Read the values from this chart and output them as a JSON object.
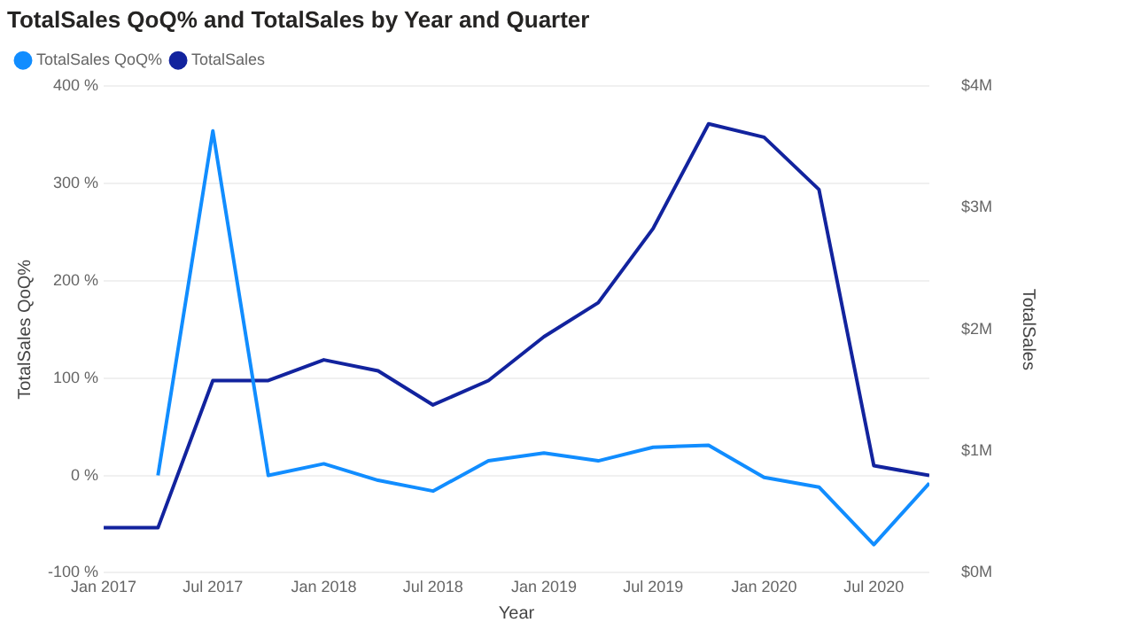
{
  "chart_data": {
    "type": "line",
    "title": "TotalSales QoQ% and TotalSales by Year and Quarter",
    "xlabel": "Year",
    "ylabel": "TotalSales QoQ%",
    "y2label": "TotalSales",
    "x": [
      "2017-01",
      "2017-04",
      "2017-07",
      "2017-10",
      "2018-01",
      "2018-04",
      "2018-07",
      "2018-10",
      "2019-01",
      "2019-04",
      "2019-07",
      "2019-10",
      "2020-01",
      "2020-04",
      "2020-07",
      "2020-10"
    ],
    "series": [
      {
        "name": "TotalSales QoQ%",
        "color": "#118dff",
        "values": [
          null,
          0,
          354,
          0,
          12,
          -5,
          -16,
          15,
          23,
          15,
          29,
          31,
          -2,
          -12,
          -71,
          -8
        ]
      },
      {
        "name": "TotalSales",
        "color": "#12239e",
        "axis": "y2",
        "values": [
          370000,
          370000,
          1580000,
          1580000,
          1750000,
          1660000,
          1380000,
          1580000,
          1940000,
          2220000,
          2830000,
          3690000,
          3580000,
          3150000,
          880000,
          800000
        ]
      }
    ],
    "xlim": [
      "2017-01",
      "2020-10"
    ],
    "xticks": [
      {
        "value": "2017-01",
        "label": "Jan 2017"
      },
      {
        "value": "2017-07",
        "label": "Jul 2017"
      },
      {
        "value": "2018-01",
        "label": "Jan 2018"
      },
      {
        "value": "2018-07",
        "label": "Jul 2018"
      },
      {
        "value": "2019-01",
        "label": "Jan 2019"
      },
      {
        "value": "2019-07",
        "label": "Jul 2019"
      },
      {
        "value": "2020-01",
        "label": "Jan 2020"
      },
      {
        "value": "2020-07",
        "label": "Jul 2020"
      }
    ],
    "ylim": [
      -100,
      400
    ],
    "yticks": [
      {
        "value": -100,
        "label": "-100 %"
      },
      {
        "value": 0,
        "label": "0 %"
      },
      {
        "value": 100,
        "label": "100 %"
      },
      {
        "value": 200,
        "label": "200 %"
      },
      {
        "value": 300,
        "label": "300 %"
      },
      {
        "value": 400,
        "label": "400 %"
      }
    ],
    "y2lim": [
      0,
      4000000
    ],
    "y2ticks": [
      {
        "value": 0,
        "label": "$0M"
      },
      {
        "value": 1000000,
        "label": "$1M"
      },
      {
        "value": 2000000,
        "label": "$2M"
      },
      {
        "value": 3000000,
        "label": "$3M"
      },
      {
        "value": 4000000,
        "label": "$4M"
      }
    ],
    "grid": "y",
    "legend": "top left",
    "marker": "none",
    "line_style": "solid"
  }
}
